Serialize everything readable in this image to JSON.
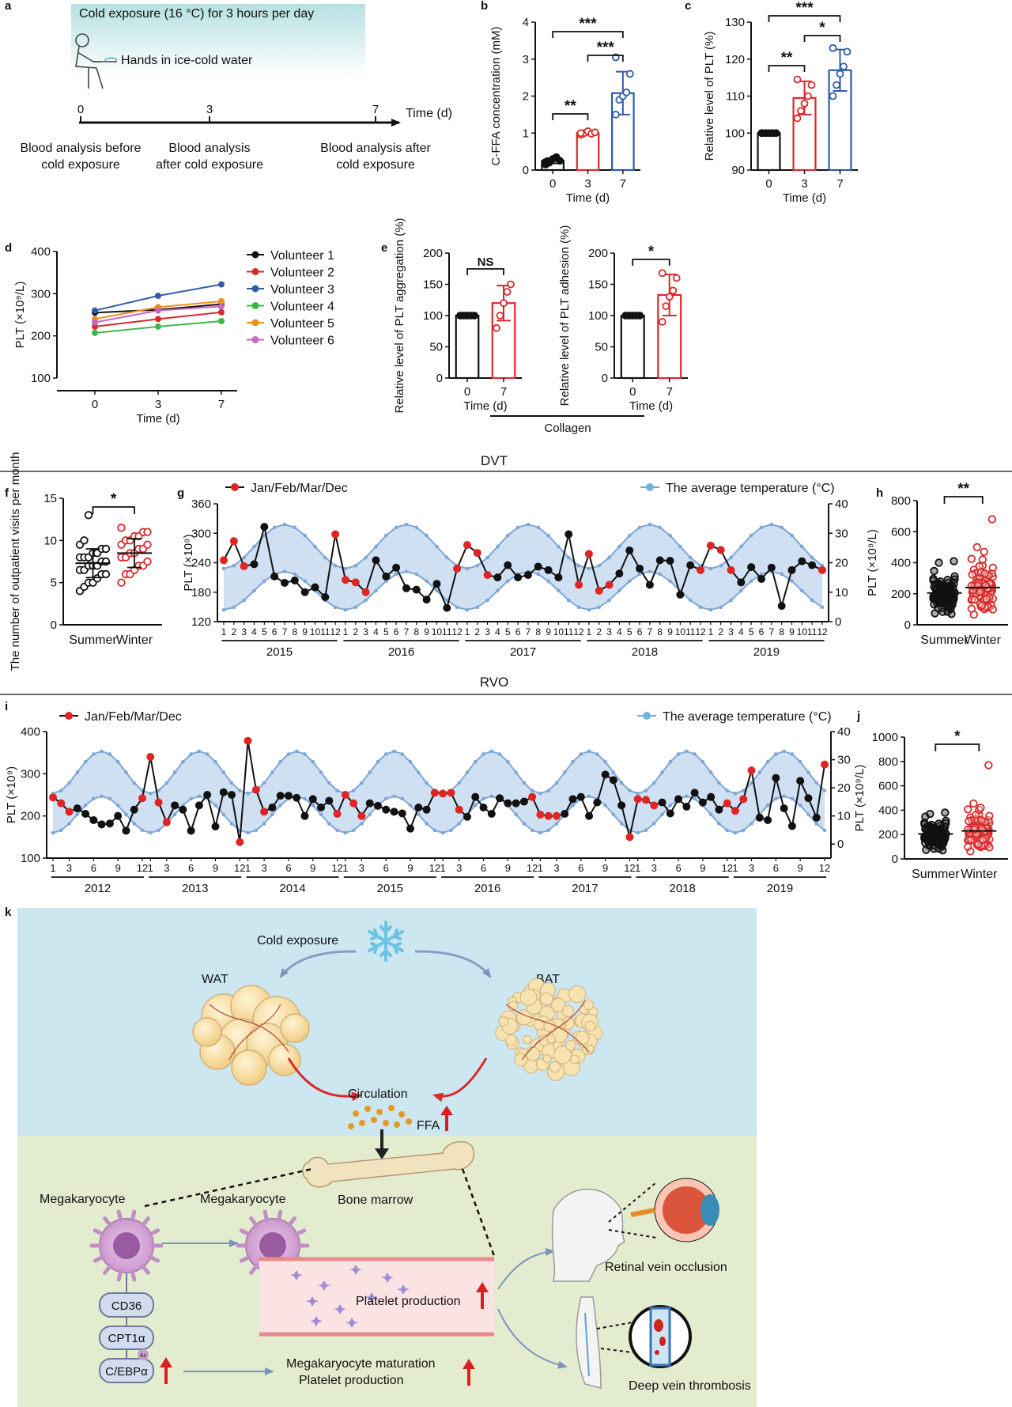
{
  "panel_letters": {
    "a": "a",
    "b": "b",
    "c": "c",
    "d": "d",
    "e": "e",
    "f": "f",
    "g": "g",
    "h": "h",
    "i": "i",
    "j": "j",
    "k": "k"
  },
  "section_titles": {
    "dvt": "DVT",
    "rvo": "RVO"
  },
  "panel_a": {
    "banner": "Cold exposure (16 °C) for 3 hours per day",
    "hands": "Hands in ice-cold water",
    "time_label": "Time (d)",
    "ticks": [
      "0",
      "3",
      "7"
    ],
    "notes": [
      [
        "Blood analysis before",
        "cold exposure"
      ],
      [
        "Blood analysis",
        "after cold exposure"
      ],
      [
        "Blood analysis after",
        "cold exposure"
      ]
    ]
  },
  "chart_data": [
    {
      "id": "b",
      "type": "bar",
      "categories": [
        "0",
        "3",
        "7"
      ],
      "values": [
        0.25,
        1.0,
        2.08
      ],
      "errors": [
        0.07,
        0.05,
        0.58
      ],
      "points": [
        [
          0.15,
          0.2,
          0.3,
          0.35,
          0.25,
          0.22
        ],
        [
          0.95,
          1.0,
          1.05,
          0.98,
          1.02,
          1.0
        ],
        [
          1.5,
          1.9,
          2.0,
          2.1,
          2.6,
          3.05
        ]
      ],
      "ylabel": "C-FFA concentration (mM)",
      "xlabel": "Time (d)",
      "ylim": [
        0,
        4
      ],
      "yticks": [
        "0",
        "1",
        "2",
        "3",
        "4"
      ],
      "colors": [
        "#111111",
        "#d92a2a",
        "#2f5ca8"
      ],
      "sig": [
        [
          "0",
          "3",
          "**"
        ],
        [
          "3",
          "7",
          "***"
        ],
        [
          "0",
          "7",
          "***"
        ]
      ]
    },
    {
      "id": "c",
      "type": "bar",
      "categories": [
        "0",
        "3",
        "7"
      ],
      "values": [
        100,
        109.5,
        117
      ],
      "errors": [
        0.2,
        4.5,
        5.6
      ],
      "points": [
        [
          100,
          100,
          100,
          100,
          100,
          100
        ],
        [
          104,
          106,
          108,
          110,
          113,
          114.5
        ],
        [
          110,
          113,
          116,
          118,
          122,
          123
        ]
      ],
      "ylabel": "Relative level of PLT (%)",
      "xlabel": "Time (d)",
      "ylim": [
        90,
        130
      ],
      "yticks": [
        "90",
        "100",
        "110",
        "120",
        "130"
      ],
      "colors": [
        "#111111",
        "#d92a2a",
        "#2f5ca8"
      ],
      "sig": [
        [
          "0",
          "3",
          "**"
        ],
        [
          "3",
          "7",
          "*"
        ],
        [
          "0",
          "7",
          "***"
        ]
      ]
    },
    {
      "id": "d",
      "type": "line",
      "x": [
        "0",
        "3",
        "7"
      ],
      "ylabel": "PLT (×10⁹/L)",
      "xlabel": "Time (d)",
      "ylim": [
        100,
        400
      ],
      "yticks": [
        "100",
        "200",
        "300",
        "400"
      ],
      "series": [
        {
          "name": "Volunteer 1",
          "values": [
            255,
            262,
            275
          ],
          "color": "#111111"
        },
        {
          "name": "Volunteer 2",
          "values": [
            222,
            240,
            256
          ],
          "color": "#d92a2a"
        },
        {
          "name": "Volunteer 3",
          "values": [
            260,
            295,
            322
          ],
          "color": "#2f5ca8"
        },
        {
          "name": "Volunteer 4",
          "values": [
            207,
            222,
            235
          ],
          "color": "#3cb84a"
        },
        {
          "name": "Volunteer 5",
          "values": [
            240,
            268,
            282
          ],
          "color": "#f28c1c"
        },
        {
          "name": "Volunteer 6",
          "values": [
            232,
            260,
            270
          ],
          "color": "#c765c2"
        }
      ]
    },
    {
      "id": "e1",
      "type": "bar",
      "categories": [
        "0",
        "7"
      ],
      "values": [
        100,
        120
      ],
      "errors": [
        0.5,
        28
      ],
      "points": [
        [
          100,
          100,
          100,
          100,
          100
        ],
        [
          80,
          100,
          120,
          138,
          150
        ]
      ],
      "ylabel": "Relative level of PLT aggregation (%)",
      "xlabel": "Time (d)",
      "ylim": [
        0,
        200
      ],
      "yticks": [
        "0",
        "50",
        "100",
        "150",
        "200"
      ],
      "colors": [
        "#111111",
        "#d92a2a"
      ],
      "sig": [
        [
          "0",
          "7",
          "NS"
        ]
      ]
    },
    {
      "id": "e2",
      "type": "bar",
      "categories": [
        "0",
        "7"
      ],
      "values": [
        100,
        133
      ],
      "errors": [
        0.5,
        33
      ],
      "points": [
        [
          100,
          100,
          100,
          100,
          100
        ],
        [
          90,
          115,
          130,
          140,
          160,
          168
        ]
      ],
      "ylabel": "Relative level of PLT adhesion (%)",
      "xlabel": "Time (d)",
      "ylim": [
        0,
        200
      ],
      "yticks": [
        "0",
        "50",
        "100",
        "150",
        "200"
      ],
      "colors": [
        "#111111",
        "#d92a2a"
      ],
      "sig": [
        [
          "0",
          "7",
          "*"
        ]
      ],
      "group_label": "Collagen"
    },
    {
      "id": "f",
      "type": "scatter",
      "categories": [
        "Summer",
        "Winter"
      ],
      "ylabel": "The number of outpatient visits per month",
      "ylim": [
        0,
        15
      ],
      "yticks": [
        "0",
        "5",
        "10",
        "15"
      ],
      "means": [
        7.3,
        8.5
      ],
      "sd": [
        1.7,
        1.7
      ],
      "colors": [
        "#111111",
        "#d92a2a"
      ],
      "sig": [
        [
          "Summer",
          "Winter",
          "*"
        ]
      ],
      "points": [
        [
          4,
          4.5,
          5,
          5,
          5.5,
          6,
          6,
          6.5,
          6.5,
          7,
          7,
          7,
          7.5,
          7.5,
          8,
          8,
          8,
          8.5,
          8.5,
          9,
          9,
          9.5,
          10,
          13
        ],
        [
          5,
          6,
          6,
          6.5,
          7,
          7,
          7.5,
          8,
          8,
          8.5,
          8.5,
          9,
          9,
          9.5,
          9.5,
          10,
          10,
          10.5,
          10.5,
          11,
          11,
          11.5
        ]
      ]
    },
    {
      "id": "g",
      "type": "line",
      "years": [
        "2015",
        "2016",
        "2017",
        "2018",
        "2019"
      ],
      "month_ticks": [
        "1",
        "2",
        "3",
        "4",
        "5",
        "6",
        "7",
        "8",
        "9",
        "10",
        "11",
        "12"
      ],
      "ylabel": "PLT (×10⁹)",
      "y2label": "",
      "ylim": [
        120,
        360
      ],
      "yticks": [
        "120",
        "180",
        "240",
        "300",
        "360"
      ],
      "y2lim": [
        0,
        40
      ],
      "y2ticks": [
        "0",
        "10",
        "20",
        "30",
        "40"
      ],
      "legend": [
        "Jan/Feb/Mar/Dec",
        "The average temperature (°C)"
      ],
      "plt": [
        245,
        284,
        233,
        237,
        313,
        212,
        199,
        204,
        180,
        190,
        170,
        298,
        205,
        200,
        180,
        245,
        212,
        230,
        188,
        185,
        165,
        197,
        148,
        228,
        276,
        260,
        215,
        210,
        235,
        210,
        215,
        232,
        225,
        210,
        298,
        195,
        258,
        183,
        195,
        218,
        265,
        228,
        195,
        245,
        244,
        175,
        235,
        225,
        275,
        266,
        225,
        200,
        231,
        207,
        230,
        152,
        225,
        243,
        235,
        225
      ]
    },
    {
      "id": "h",
      "type": "scatter",
      "categories": [
        "Summer",
        "Winter"
      ],
      "ylabel": "PLT (×10⁹/L)",
      "ylim": [
        0,
        800
      ],
      "yticks": [
        "0",
        "200",
        "400",
        "600",
        "800"
      ],
      "means": [
        205,
        240
      ],
      "colors": [
        "#111111",
        "#d92a2a"
      ],
      "sig": [
        [
          "Summer",
          "Winter",
          "**"
        ]
      ]
    },
    {
      "id": "i",
      "type": "line",
      "years": [
        "2012",
        "2013",
        "2014",
        "2015",
        "2016",
        "2017",
        "2018",
        "2019"
      ],
      "month_ticks": [
        "1",
        "3",
        "6",
        "9",
        "12"
      ],
      "ylabel": "PLT (×10⁹)",
      "y2label": "",
      "ylim": [
        100,
        400
      ],
      "yticks": [
        "100",
        "200",
        "300",
        "400"
      ],
      "y2lim": [
        -5,
        40
      ],
      "y2ticks": [
        "0",
        "10",
        "20",
        "30",
        "40"
      ],
      "legend": [
        "Jan/Feb/Mar/Dec",
        "The average temperature (°C)"
      ],
      "plt": [
        244,
        230,
        210,
        218,
        205,
        190,
        180,
        182,
        200,
        165,
        215,
        242,
        340,
        232,
        185,
        225,
        215,
        165,
        225,
        250,
        175,
        256,
        250,
        138,
        378,
        262,
        210,
        220,
        248,
        248,
        243,
        200,
        240,
        220,
        236,
        205,
        250,
        230,
        200,
        230,
        224,
        215,
        210,
        206,
        170,
        220,
        215,
        255,
        253,
        255,
        215,
        198,
        245,
        220,
        205,
        242,
        230,
        230,
        234,
        245,
        203,
        200,
        200,
        205,
        240,
        245,
        200,
        232,
        298,
        285,
        225,
        150,
        240,
        238,
        225,
        232,
        206,
        240,
        222,
        255,
        232,
        245,
        215,
        230,
        212,
        240,
        308,
        196,
        190,
        290,
        218,
        176,
        283,
        242,
        196,
        322
      ]
    },
    {
      "id": "j",
      "type": "scatter",
      "categories": [
        "Summer",
        "Winter"
      ],
      "ylabel": "PLT (×10⁹/L)",
      "ylim": [
        0,
        1000
      ],
      "yticks": [
        "0",
        "200",
        "400",
        "600",
        "800",
        "1000"
      ],
      "means": [
        205,
        230
      ],
      "colors": [
        "#111111",
        "#d92a2a"
      ],
      "sig": [
        [
          "Summer",
          "Winter",
          "*"
        ]
      ]
    }
  ],
  "panel_k": {
    "cold_exposure": "Cold exposure",
    "wat": "WAT",
    "bat": "BAT",
    "circulation": "Circulation",
    "ffa": "FFA",
    "bone_marrow": "Bone marrow",
    "megakaryocyte_1": "Megakaryocyte",
    "megakaryocyte_2": "Megakaryocyte",
    "platelet_production": "Platelet production",
    "retinal": "Retinal vein occlusion",
    "dvt": "Deep vein thrombosis",
    "cd36": "CD36",
    "cpt1a": "CPT1α",
    "cebpa": "C/EBPα",
    "ac": "Ac",
    "maturation": "Megakaryocyte maturation",
    "maturation_2": "Platelet production"
  }
}
